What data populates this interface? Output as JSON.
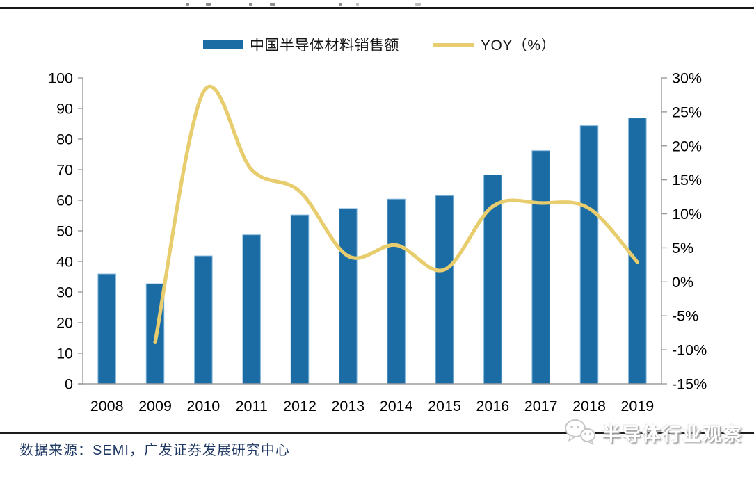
{
  "legend": {
    "items": [
      {
        "label": "中国半导体材料销售额",
        "type": "bar",
        "color": "#1b6ba5"
      },
      {
        "label": "YOY（%）",
        "type": "line",
        "color": "#e7cd6d"
      }
    ]
  },
  "chart_data": {
    "type": "bar",
    "title": "",
    "xlabel": "",
    "ylabel": "",
    "categories": [
      "2008",
      "2009",
      "2010",
      "2011",
      "2012",
      "2013",
      "2014",
      "2015",
      "2016",
      "2017",
      "2018",
      "2019"
    ],
    "series": [
      {
        "name": "中国半导体材料销售额",
        "chart": "bar",
        "axis": "left",
        "color": "#1b6ba5",
        "edge_color": "#7fb3d8",
        "values": [
          35.9,
          32.7,
          41.8,
          48.7,
          55.2,
          57.3,
          60.4,
          61.5,
          68.3,
          76.2,
          84.4,
          86.9
        ]
      },
      {
        "name": "YOY（%）",
        "chart": "line",
        "axis": "right",
        "color": "#e7cd6d",
        "smooth": true,
        "values": [
          null,
          -8.9,
          27.9,
          16.5,
          13.3,
          3.8,
          5.4,
          1.8,
          11.1,
          11.6,
          10.8,
          2.9
        ]
      }
    ],
    "left_axis": {
      "min": 0,
      "max": 100,
      "step": 10,
      "tick_values": [
        100,
        90,
        80,
        70,
        60,
        50,
        40,
        30,
        20,
        10,
        0
      ],
      "tick_labels": [
        "100",
        "90",
        "80",
        "70",
        "60",
        "50",
        "40",
        "30",
        "20",
        "10",
        "0"
      ]
    },
    "right_axis": {
      "min": -15,
      "max": 30,
      "step": 5,
      "tick_values": [
        30,
        25,
        20,
        15,
        10,
        5,
        0,
        -5,
        -10,
        -15
      ],
      "tick_labels": [
        "30%",
        "25%",
        "20%",
        "15%",
        "10%",
        "5%",
        "0%",
        "-5%",
        "-10%",
        "-15%"
      ]
    },
    "grid": false,
    "legend_position": "top"
  },
  "footer": {
    "source": "数据来源：SEMI，广发证券发展研究中心",
    "watermark": "半导体行业观察"
  },
  "colors": {
    "bar": "#1b6ba5",
    "bar_edge": "#7fb3d8",
    "line": "#e7cd6d",
    "axis": "#9b9b9b",
    "label": "#000000",
    "source_text": "#1f3864",
    "rule": "#161616"
  }
}
